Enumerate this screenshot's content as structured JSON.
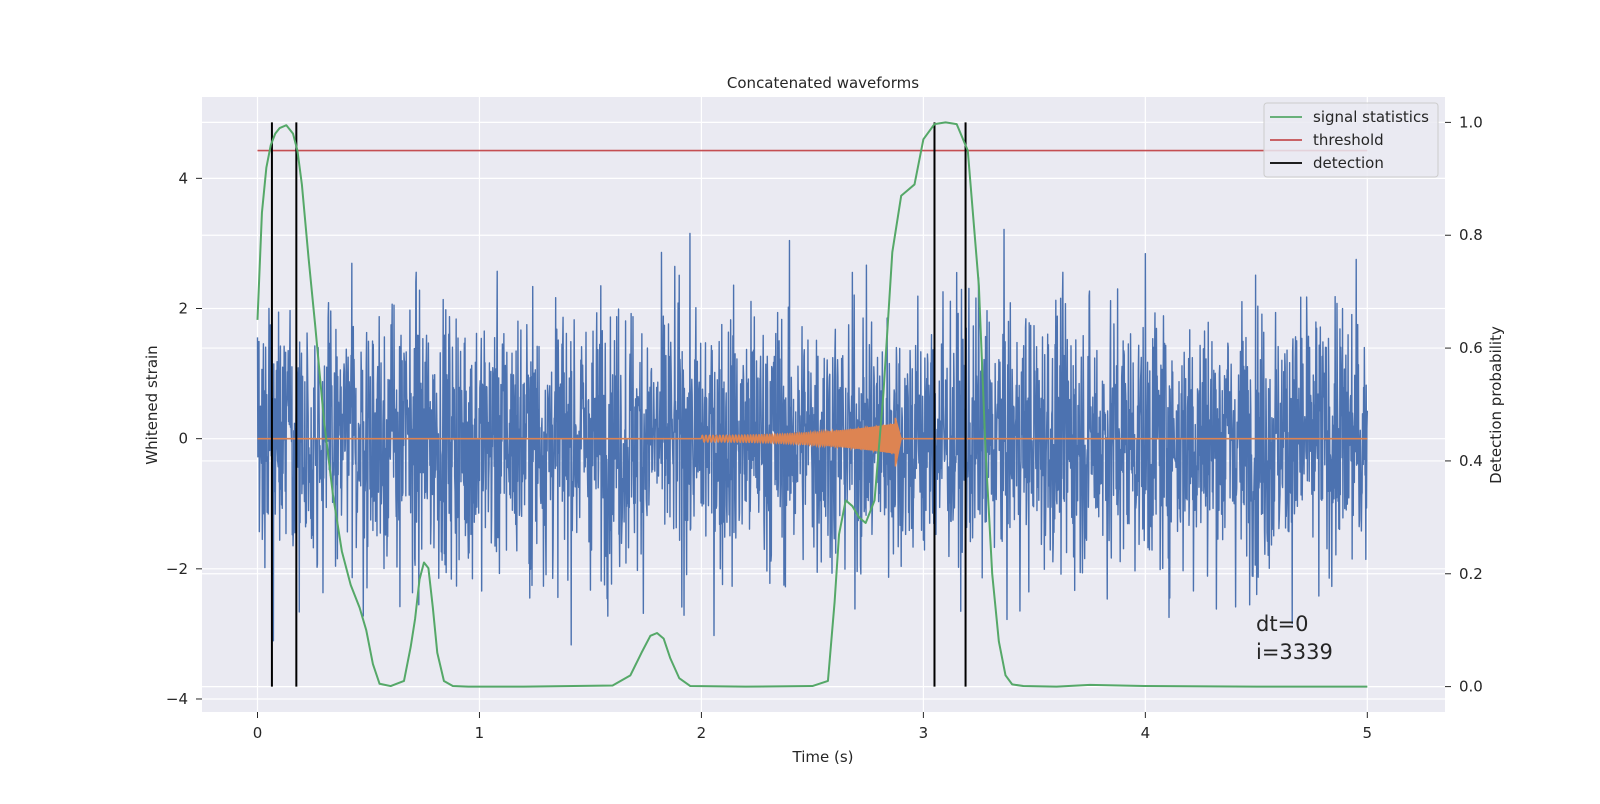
{
  "chart_data": {
    "type": "line",
    "title": "Concatenated waveforms",
    "xlabel": "Time (s)",
    "ylabel_left": "Whitened strain",
    "ylabel_right": "Detection probability",
    "xlim": [
      -0.25,
      5.35
    ],
    "ylim_left": [
      -4.2,
      5.25
    ],
    "ylim_right": [
      -0.045,
      1.045
    ],
    "xticks": [
      0,
      1,
      2,
      3,
      4,
      5
    ],
    "xtick_labels": [
      "0",
      "1",
      "2",
      "3",
      "4",
      "5"
    ],
    "yticks_left": [
      -4,
      -2,
      0,
      2,
      4
    ],
    "ytick_labels_left": [
      "−4",
      "−2",
      "0",
      "2",
      "4"
    ],
    "yticks_right": [
      0.0,
      0.2,
      0.4,
      0.6,
      0.8,
      1.0
    ],
    "ytick_labels_right": [
      "0.0",
      "0.2",
      "0.4",
      "0.6",
      "0.8",
      "1.0"
    ],
    "grid": true,
    "background": "#eaeaf2",
    "legend_position": "top-right",
    "legend": [
      {
        "label": "signal statistics",
        "color": "#55a868"
      },
      {
        "label": "threshold",
        "color": "#c44e52"
      },
      {
        "label": "detection",
        "color": "#000000"
      }
    ],
    "series": [
      {
        "kind": "noise",
        "axis": "left",
        "color": "#4c72b0",
        "x_range": [
          0,
          5
        ],
        "envelope": [
          -3.75,
          3.5
        ]
      },
      {
        "kind": "chirp",
        "axis": "left",
        "color": "#dd8452",
        "x_range": [
          0,
          5
        ],
        "chirp_start": 2.0,
        "chirp_end": 2.9,
        "peak_amplitude": [
          -0.45,
          0.33
        ]
      },
      {
        "name": "signal statistics",
        "axis": "right",
        "color": "#55a868",
        "x": [
          0.0,
          0.02,
          0.04,
          0.06,
          0.08,
          0.1,
          0.13,
          0.16,
          0.18,
          0.2,
          0.23,
          0.26,
          0.3,
          0.34,
          0.38,
          0.42,
          0.46,
          0.49,
          0.52,
          0.55,
          0.6,
          0.66,
          0.69,
          0.71,
          0.73,
          0.75,
          0.77,
          0.79,
          0.81,
          0.84,
          0.88,
          0.95,
          1.2,
          1.6,
          1.68,
          1.73,
          1.77,
          1.8,
          1.83,
          1.86,
          1.9,
          1.95,
          2.2,
          2.5,
          2.57,
          2.6,
          2.62,
          2.65,
          2.68,
          2.71,
          2.74,
          2.78,
          2.82,
          2.86,
          2.9,
          2.93,
          2.96,
          3.0,
          3.05,
          3.1,
          3.15,
          3.2,
          3.25,
          3.28,
          3.31,
          3.34,
          3.37,
          3.4,
          3.45,
          3.6,
          3.75,
          4.0,
          4.5,
          5.0
        ],
        "y": [
          0.65,
          0.84,
          0.92,
          0.96,
          0.98,
          0.99,
          0.995,
          0.98,
          0.95,
          0.89,
          0.76,
          0.64,
          0.47,
          0.34,
          0.24,
          0.18,
          0.14,
          0.1,
          0.04,
          0.005,
          0.001,
          0.01,
          0.07,
          0.12,
          0.19,
          0.22,
          0.21,
          0.14,
          0.06,
          0.01,
          0.001,
          0.0,
          0.0,
          0.002,
          0.02,
          0.06,
          0.09,
          0.095,
          0.085,
          0.05,
          0.015,
          0.001,
          0.0,
          0.001,
          0.01,
          0.15,
          0.27,
          0.33,
          0.32,
          0.3,
          0.29,
          0.33,
          0.52,
          0.77,
          0.87,
          0.88,
          0.89,
          0.97,
          0.997,
          1.0,
          0.997,
          0.95,
          0.71,
          0.42,
          0.2,
          0.08,
          0.02,
          0.004,
          0.001,
          0.0,
          0.003,
          0.001,
          0.0,
          0.0
        ]
      }
    ],
    "threshold": {
      "value": 0.95,
      "x_range": [
        0,
        5
      ],
      "color": "#c44e52"
    },
    "detections": {
      "x": [
        0.065,
        0.175,
        3.05,
        3.19
      ],
      "y_range": [
        0.0,
        1.0
      ],
      "color": "#000000"
    },
    "annotations": [
      {
        "text": "dt=0",
        "x": 4.5,
        "y": -3.35
      },
      {
        "text": "i=3339",
        "x": 4.5,
        "y": -3.75
      }
    ]
  }
}
